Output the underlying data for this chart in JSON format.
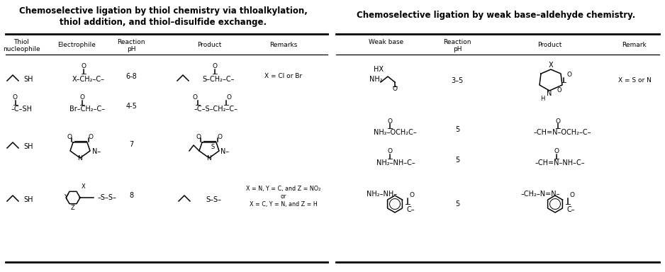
{
  "bg_color": "#ffffff",
  "fig_width": 9.38,
  "fig_height": 3.84,
  "left_title_line1": "Chemoselective ligation by thiol chemistry via thloalkylation,",
  "left_title_line2": "thiol addition, and thiol–disulfide exchange.",
  "right_title": "Chemoselective ligation by weak base–aldehyde chemistry."
}
